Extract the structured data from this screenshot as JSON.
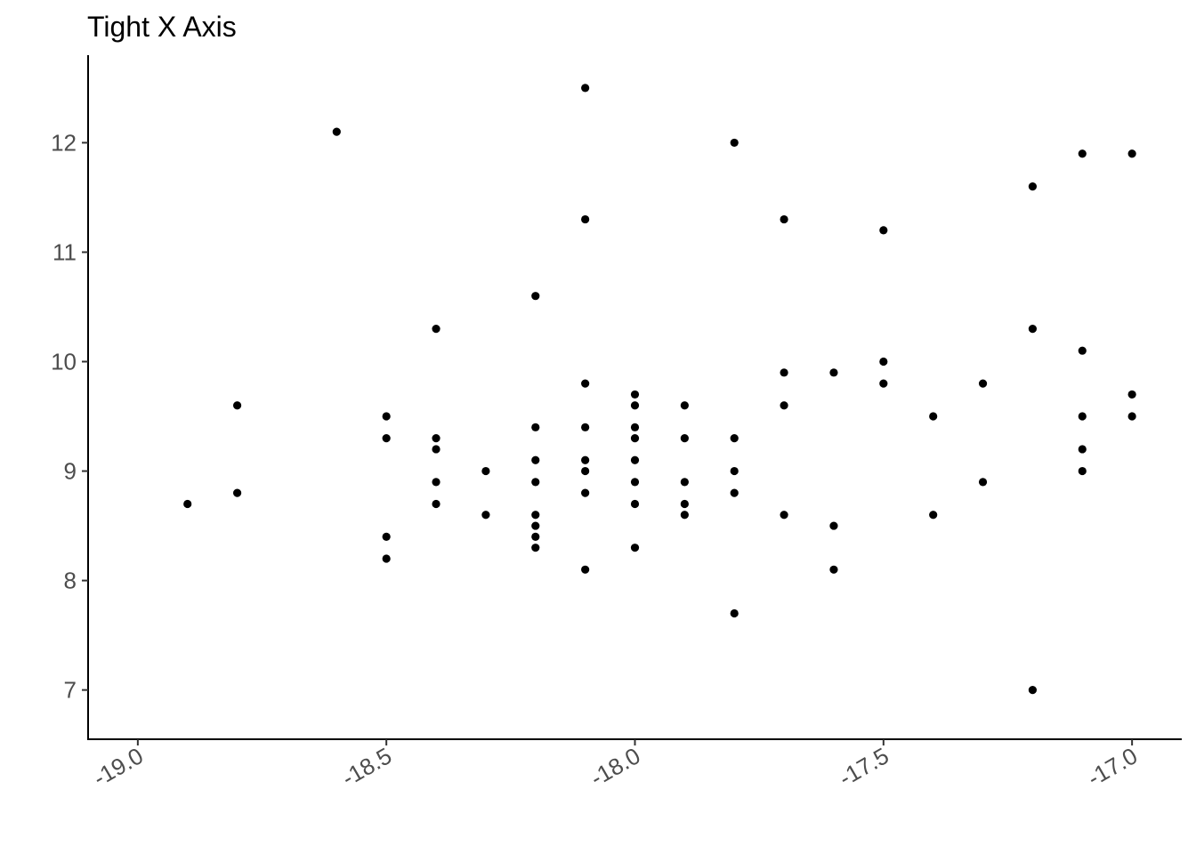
{
  "chart_data": {
    "type": "scatter",
    "title": "Tight X Axis",
    "xlabel": "",
    "ylabel": "",
    "xlim": [
      -19.1,
      -16.9
    ],
    "ylim": [
      6.55,
      12.8
    ],
    "x_ticks": [
      -19.0,
      -18.5,
      -18.0,
      -17.5,
      -17.0
    ],
    "x_tick_labels": [
      "-19.0",
      "-18.5",
      "-18.0",
      "-17.5",
      "-17.0"
    ],
    "y_ticks": [
      7,
      8,
      9,
      10,
      11,
      12
    ],
    "y_tick_labels": [
      "7",
      "8",
      "9",
      "10",
      "11",
      "12"
    ],
    "grid": false,
    "point_color": "#000000",
    "points": [
      {
        "x": -18.9,
        "y": 8.7
      },
      {
        "x": -18.8,
        "y": 9.6
      },
      {
        "x": -18.8,
        "y": 8.8
      },
      {
        "x": -18.6,
        "y": 12.1
      },
      {
        "x": -18.5,
        "y": 9.5
      },
      {
        "x": -18.5,
        "y": 9.3
      },
      {
        "x": -18.5,
        "y": 8.4
      },
      {
        "x": -18.5,
        "y": 8.2
      },
      {
        "x": -18.4,
        "y": 10.3
      },
      {
        "x": -18.4,
        "y": 9.3
      },
      {
        "x": -18.4,
        "y": 9.2
      },
      {
        "x": -18.4,
        "y": 8.9
      },
      {
        "x": -18.4,
        "y": 8.7
      },
      {
        "x": -18.3,
        "y": 9.0
      },
      {
        "x": -18.3,
        "y": 8.6
      },
      {
        "x": -18.2,
        "y": 10.6
      },
      {
        "x": -18.2,
        "y": 9.4
      },
      {
        "x": -18.2,
        "y": 9.1
      },
      {
        "x": -18.2,
        "y": 8.9
      },
      {
        "x": -18.2,
        "y": 8.6
      },
      {
        "x": -18.2,
        "y": 8.5
      },
      {
        "x": -18.2,
        "y": 8.4
      },
      {
        "x": -18.2,
        "y": 8.3
      },
      {
        "x": -18.1,
        "y": 12.5
      },
      {
        "x": -18.1,
        "y": 11.3
      },
      {
        "x": -18.1,
        "y": 9.8
      },
      {
        "x": -18.1,
        "y": 9.4
      },
      {
        "x": -18.1,
        "y": 9.1
      },
      {
        "x": -18.1,
        "y": 9.0
      },
      {
        "x": -18.1,
        "y": 8.8
      },
      {
        "x": -18.1,
        "y": 8.1
      },
      {
        "x": -18.0,
        "y": 9.7
      },
      {
        "x": -18.0,
        "y": 9.6
      },
      {
        "x": -18.0,
        "y": 9.4
      },
      {
        "x": -18.0,
        "y": 9.3
      },
      {
        "x": -18.0,
        "y": 9.1
      },
      {
        "x": -18.0,
        "y": 8.9
      },
      {
        "x": -18.0,
        "y": 8.7
      },
      {
        "x": -18.0,
        "y": 8.3
      },
      {
        "x": -17.9,
        "y": 9.6
      },
      {
        "x": -17.9,
        "y": 9.3
      },
      {
        "x": -17.9,
        "y": 8.9
      },
      {
        "x": -17.9,
        "y": 8.7
      },
      {
        "x": -17.9,
        "y": 8.6
      },
      {
        "x": -17.8,
        "y": 12.0
      },
      {
        "x": -17.8,
        "y": 9.3
      },
      {
        "x": -17.8,
        "y": 9.0
      },
      {
        "x": -17.8,
        "y": 8.8
      },
      {
        "x": -17.8,
        "y": 7.7
      },
      {
        "x": -17.7,
        "y": 11.3
      },
      {
        "x": -17.7,
        "y": 9.9
      },
      {
        "x": -17.7,
        "y": 9.6
      },
      {
        "x": -17.7,
        "y": 8.6
      },
      {
        "x": -17.6,
        "y": 9.9
      },
      {
        "x": -17.6,
        "y": 8.5
      },
      {
        "x": -17.6,
        "y": 8.1
      },
      {
        "x": -17.5,
        "y": 11.2
      },
      {
        "x": -17.5,
        "y": 10.0
      },
      {
        "x": -17.5,
        "y": 9.8
      },
      {
        "x": -17.4,
        "y": 9.5
      },
      {
        "x": -17.4,
        "y": 8.6
      },
      {
        "x": -17.3,
        "y": 9.8
      },
      {
        "x": -17.3,
        "y": 8.9
      },
      {
        "x": -17.2,
        "y": 11.6
      },
      {
        "x": -17.2,
        "y": 10.3
      },
      {
        "x": -17.2,
        "y": 7.0
      },
      {
        "x": -17.1,
        "y": 11.9
      },
      {
        "x": -17.1,
        "y": 10.1
      },
      {
        "x": -17.1,
        "y": 9.5
      },
      {
        "x": -17.1,
        "y": 9.2
      },
      {
        "x": -17.1,
        "y": 9.0
      },
      {
        "x": -17.0,
        "y": 11.9
      },
      {
        "x": -17.0,
        "y": 9.7
      },
      {
        "x": -17.0,
        "y": 9.5
      }
    ]
  }
}
